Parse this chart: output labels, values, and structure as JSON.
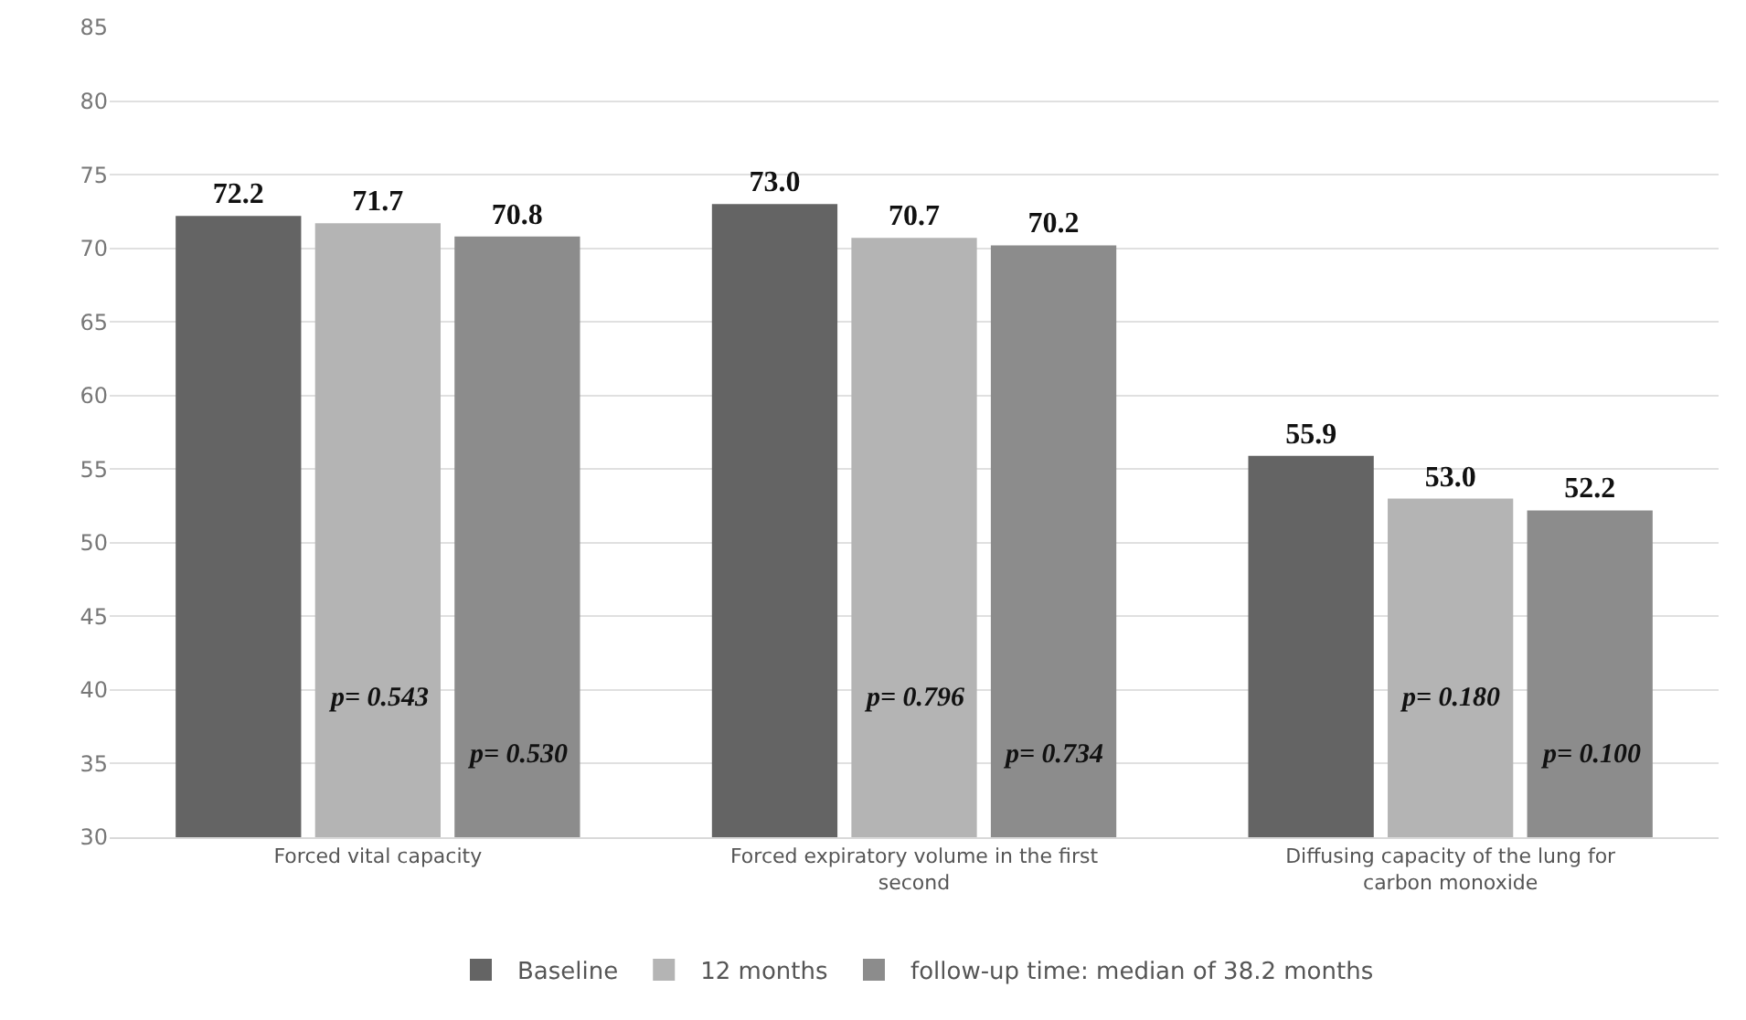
{
  "chart_data": {
    "type": "bar",
    "categories": [
      "Forced vital capacity",
      "Forced expiratory volume in the first second",
      "Diffusing capacity of the lung for carbon monoxide"
    ],
    "series": [
      {
        "name": "Baseline",
        "color": "#646464",
        "values": [
          72.2,
          73.0,
          55.9
        ],
        "value_labels": [
          "72.2",
          "73.0",
          "55.9"
        ]
      },
      {
        "name": "12 months",
        "color": "#b4b4b4",
        "values": [
          71.7,
          70.7,
          53.0
        ],
        "value_labels": [
          "71.7",
          "70.7",
          "53.0"
        ]
      },
      {
        "name": "follow-up time: median of 38.2 months",
        "color": "#8c8c8c",
        "values": [
          70.8,
          70.2,
          52.2
        ],
        "value_labels": [
          "70.8",
          "70.2",
          "52.2"
        ]
      }
    ],
    "ylim": [
      30,
      85
    ],
    "yticks": [
      30,
      35,
      40,
      45,
      50,
      55,
      60,
      65,
      70,
      75,
      80,
      85
    ],
    "grid": "y",
    "legend": "bottom",
    "annotations": [
      "p= 0.543",
      "p= 0.530",
      "p= 0.796",
      "p= 0.734",
      "p= 0.180",
      "p= 0.100"
    ]
  }
}
